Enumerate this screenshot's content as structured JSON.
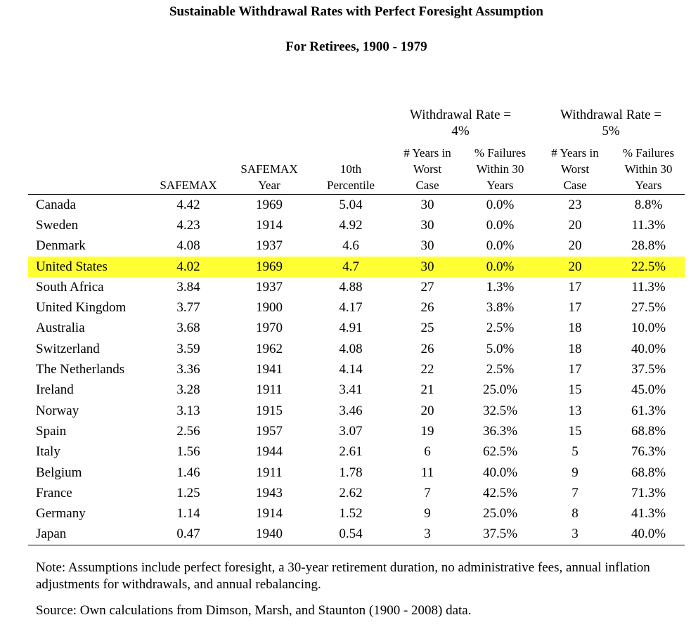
{
  "title": "Sustainable Withdrawal Rates with Perfect Foresight Assumption",
  "subtitle": "For Retirees, 1900 - 1979",
  "group_headers": {
    "rate4_line1": "Withdrawal Rate =",
    "rate4_line2": "4%",
    "rate5_line1": "Withdrawal Rate =",
    "rate5_line2": "5%"
  },
  "columns": {
    "safemax": "SAFEMAX",
    "safemax_year_1": "SAFEMAX",
    "safemax_year_2": "Year",
    "tenth_1": "10th",
    "tenth_2": "Percentile",
    "years4_1": "# Years in",
    "years4_2": "Worst",
    "years4_3": "Case",
    "fail4_1": "% Failures",
    "fail4_2": "Within 30",
    "fail4_3": "Years",
    "years5_1": "# Years in",
    "years5_2": "Worst",
    "years5_3": "Case",
    "fail5_1": "% Failures",
    "fail5_2": "Within 30",
    "fail5_3": "Years"
  },
  "rows": [
    {
      "country": "Canada",
      "safemax": "4.42",
      "year": "1969",
      "p10": "5.04",
      "y4": "30",
      "f4": "0.0%",
      "y5": "23",
      "f5": "8.8%"
    },
    {
      "country": "Sweden",
      "safemax": "4.23",
      "year": "1914",
      "p10": "4.92",
      "y4": "30",
      "f4": "0.0%",
      "y5": "20",
      "f5": "11.3%"
    },
    {
      "country": "Denmark",
      "safemax": "4.08",
      "year": "1937",
      "p10": "4.6",
      "y4": "30",
      "f4": "0.0%",
      "y5": "20",
      "f5": "28.8%"
    },
    {
      "country": "United States",
      "safemax": "4.02",
      "year": "1969",
      "p10": "4.7",
      "y4": "30",
      "f4": "0.0%",
      "y5": "20",
      "f5": "22.5%",
      "highlight": true
    },
    {
      "country": "South Africa",
      "safemax": "3.84",
      "year": "1937",
      "p10": "4.88",
      "y4": "27",
      "f4": "1.3%",
      "y5": "17",
      "f5": "11.3%"
    },
    {
      "country": "United Kingdom",
      "safemax": "3.77",
      "year": "1900",
      "p10": "4.17",
      "y4": "26",
      "f4": "3.8%",
      "y5": "17",
      "f5": "27.5%"
    },
    {
      "country": "Australia",
      "safemax": "3.68",
      "year": "1970",
      "p10": "4.91",
      "y4": "25",
      "f4": "2.5%",
      "y5": "18",
      "f5": "10.0%"
    },
    {
      "country": "Switzerland",
      "safemax": "3.59",
      "year": "1962",
      "p10": "4.08",
      "y4": "26",
      "f4": "5.0%",
      "y5": "18",
      "f5": "40.0%"
    },
    {
      "country": "The Netherlands",
      "safemax": "3.36",
      "year": "1941",
      "p10": "4.14",
      "y4": "22",
      "f4": "2.5%",
      "y5": "17",
      "f5": "37.5%"
    },
    {
      "country": "Ireland",
      "safemax": "3.28",
      "year": "1911",
      "p10": "3.41",
      "y4": "21",
      "f4": "25.0%",
      "y5": "15",
      "f5": "45.0%"
    },
    {
      "country": "Norway",
      "safemax": "3.13",
      "year": "1915",
      "p10": "3.46",
      "y4": "20",
      "f4": "32.5%",
      "y5": "13",
      "f5": "61.3%"
    },
    {
      "country": "Spain",
      "safemax": "2.56",
      "year": "1957",
      "p10": "3.07",
      "y4": "19",
      "f4": "36.3%",
      "y5": "15",
      "f5": "68.8%"
    },
    {
      "country": "Italy",
      "safemax": "1.56",
      "year": "1944",
      "p10": "2.61",
      "y4": "6",
      "f4": "62.5%",
      "y5": "5",
      "f5": "76.3%"
    },
    {
      "country": "Belgium",
      "safemax": "1.46",
      "year": "1911",
      "p10": "1.78",
      "y4": "11",
      "f4": "40.0%",
      "y5": "9",
      "f5": "68.8%"
    },
    {
      "country": "France",
      "safemax": "1.25",
      "year": "1943",
      "p10": "2.62",
      "y4": "7",
      "f4": "42.5%",
      "y5": "7",
      "f5": "71.3%"
    },
    {
      "country": "Germany",
      "safemax": "1.14",
      "year": "1914",
      "p10": "1.52",
      "y4": "9",
      "f4": "25.0%",
      "y5": "8",
      "f5": "41.3%"
    },
    {
      "country": "Japan",
      "safemax": "0.47",
      "year": "1940",
      "p10": "0.54",
      "y4": "3",
      "f4": "37.5%",
      "y5": "3",
      "f5": "40.0%"
    }
  ],
  "highlight_color": "#ffff33",
  "note": "Note: Assumptions include perfect foresight, a 30-year retirement duration, no administrative fees, annual inflation adjustments for withdrawals, and annual rebalancing.",
  "source": "Source: Own calculations from Dimson, Marsh, and Staunton (1900 - 2008) data."
}
